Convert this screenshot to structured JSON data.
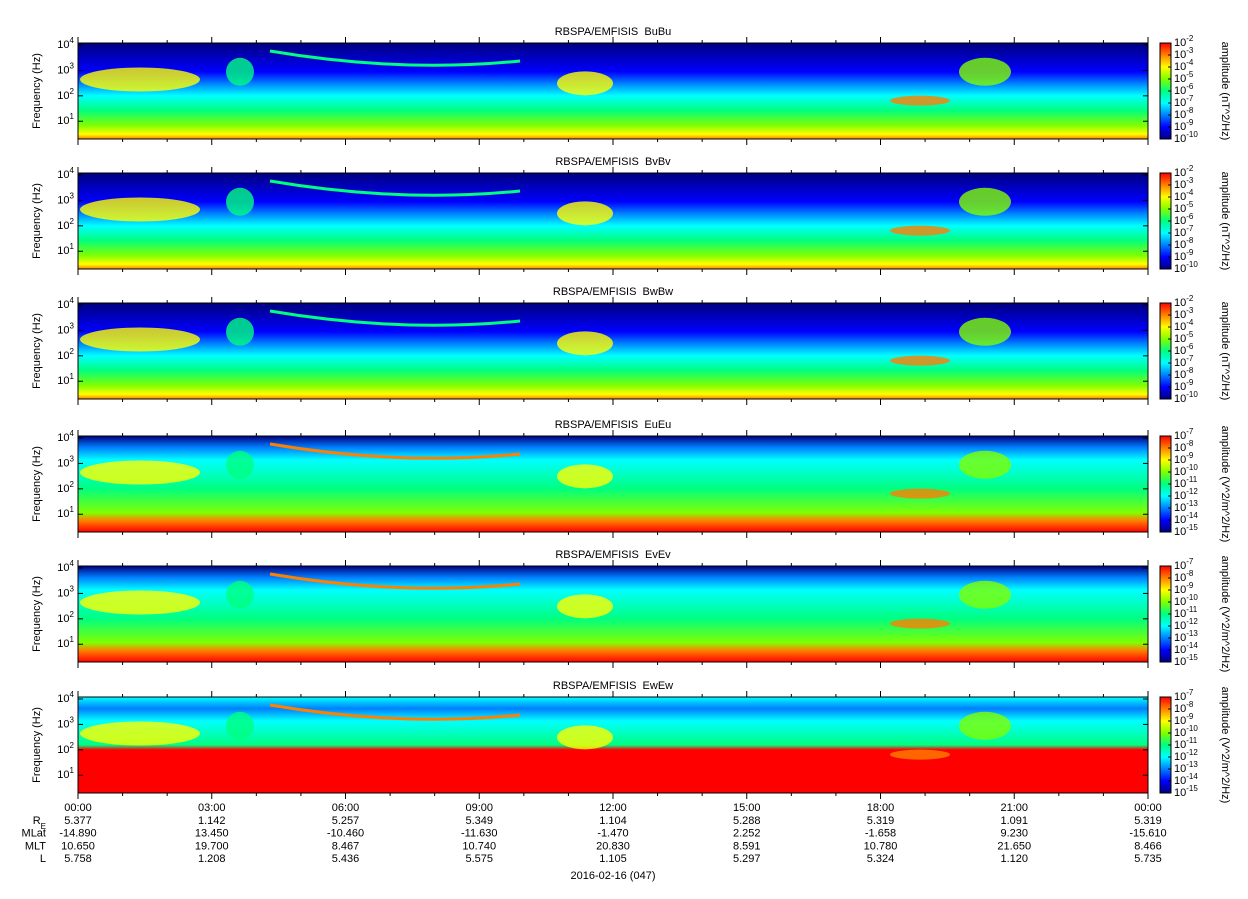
{
  "chart_data": [
    {
      "type": "spectrogram",
      "title": "RBSPA/EMFISIS  BuBu",
      "ylabel": "Frequency (Hz)",
      "log_y": true,
      "ylim": [
        2,
        12000
      ],
      "yticks": [
        {
          "value": 10,
          "label": "10",
          "exponent": "1"
        },
        {
          "value": 100,
          "label": "10",
          "exponent": "2"
        },
        {
          "value": 1000,
          "label": "10",
          "exponent": "3"
        },
        {
          "value": 10000,
          "label": "10",
          "exponent": "4"
        }
      ],
      "colorbar": {
        "label": "amplitude (nT^2/Hz)",
        "lim": [
          1e-10,
          0.01
        ],
        "ticks": [
          {
            "value": 0.01,
            "label": "10",
            "exponent": "-2"
          },
          {
            "value": 0.001,
            "label": "10",
            "exponent": "-3"
          },
          {
            "value": 0.0001,
            "label": "10",
            "exponent": "-4"
          },
          {
            "value": 1e-05,
            "label": "10",
            "exponent": "-5"
          },
          {
            "value": 1e-06,
            "label": "10",
            "exponent": "-6"
          },
          {
            "value": 1e-07,
            "label": "10",
            "exponent": "-7"
          },
          {
            "value": 1e-08,
            "label": "10",
            "exponent": "-8"
          },
          {
            "value": 1e-09,
            "label": "10",
            "exponent": "-9"
          },
          {
            "value": 1e-10,
            "label": "10",
            "exponent": "-10"
          }
        ]
      }
    },
    {
      "type": "spectrogram",
      "title": "RBSPA/EMFISIS  BvBv",
      "ylabel": "Frequency (Hz)",
      "log_y": true,
      "ylim": [
        2,
        12000
      ],
      "yticks": [
        {
          "value": 10,
          "label": "10",
          "exponent": "1"
        },
        {
          "value": 100,
          "label": "10",
          "exponent": "2"
        },
        {
          "value": 1000,
          "label": "10",
          "exponent": "3"
        },
        {
          "value": 10000,
          "label": "10",
          "exponent": "4"
        }
      ],
      "colorbar": {
        "label": "amplitude (nT^2/Hz)",
        "lim": [
          1e-10,
          0.01
        ],
        "ticks": [
          {
            "value": 0.01,
            "label": "10",
            "exponent": "-2"
          },
          {
            "value": 0.001,
            "label": "10",
            "exponent": "-3"
          },
          {
            "value": 0.0001,
            "label": "10",
            "exponent": "-4"
          },
          {
            "value": 1e-05,
            "label": "10",
            "exponent": "-5"
          },
          {
            "value": 1e-06,
            "label": "10",
            "exponent": "-6"
          },
          {
            "value": 1e-07,
            "label": "10",
            "exponent": "-7"
          },
          {
            "value": 1e-08,
            "label": "10",
            "exponent": "-8"
          },
          {
            "value": 1e-09,
            "label": "10",
            "exponent": "-9"
          },
          {
            "value": 1e-10,
            "label": "10",
            "exponent": "-10"
          }
        ]
      }
    },
    {
      "type": "spectrogram",
      "title": "RBSPA/EMFISIS  BwBw",
      "ylabel": "Frequency (Hz)",
      "log_y": true,
      "ylim": [
        2,
        12000
      ],
      "yticks": [
        {
          "value": 10,
          "label": "10",
          "exponent": "1"
        },
        {
          "value": 100,
          "label": "10",
          "exponent": "2"
        },
        {
          "value": 1000,
          "label": "10",
          "exponent": "3"
        },
        {
          "value": 10000,
          "label": "10",
          "exponent": "4"
        }
      ],
      "colorbar": {
        "label": "amplitude (nT^2/Hz)",
        "lim": [
          1e-10,
          0.01
        ],
        "ticks": [
          {
            "value": 0.01,
            "label": "10",
            "exponent": "-2"
          },
          {
            "value": 0.001,
            "label": "10",
            "exponent": "-3"
          },
          {
            "value": 0.0001,
            "label": "10",
            "exponent": "-4"
          },
          {
            "value": 1e-05,
            "label": "10",
            "exponent": "-5"
          },
          {
            "value": 1e-06,
            "label": "10",
            "exponent": "-6"
          },
          {
            "value": 1e-07,
            "label": "10",
            "exponent": "-7"
          },
          {
            "value": 1e-08,
            "label": "10",
            "exponent": "-8"
          },
          {
            "value": 1e-09,
            "label": "10",
            "exponent": "-9"
          },
          {
            "value": 1e-10,
            "label": "10",
            "exponent": "-10"
          }
        ]
      }
    },
    {
      "type": "spectrogram",
      "title": "RBSPA/EMFISIS  EuEu",
      "ylabel": "Frequency (Hz)",
      "log_y": true,
      "ylim": [
        2,
        12000
      ],
      "yticks": [
        {
          "value": 10,
          "label": "10",
          "exponent": "1"
        },
        {
          "value": 100,
          "label": "10",
          "exponent": "2"
        },
        {
          "value": 1000,
          "label": "10",
          "exponent": "3"
        },
        {
          "value": 10000,
          "label": "10",
          "exponent": "4"
        }
      ],
      "colorbar": {
        "label": "amplitude (V^2/m^2/Hz)",
        "lim": [
          1e-15,
          1e-07
        ],
        "ticks": [
          {
            "value": 1e-07,
            "label": "10",
            "exponent": "-7"
          },
          {
            "value": 1e-08,
            "label": "10",
            "exponent": "-8"
          },
          {
            "value": 1e-09,
            "label": "10",
            "exponent": "-9"
          },
          {
            "value": 1e-10,
            "label": "10",
            "exponent": "-10"
          },
          {
            "value": 1e-11,
            "label": "10",
            "exponent": "-11"
          },
          {
            "value": 1e-12,
            "label": "10",
            "exponent": "-12"
          },
          {
            "value": 1e-13,
            "label": "10",
            "exponent": "-13"
          },
          {
            "value": 1e-14,
            "label": "10",
            "exponent": "-14"
          },
          {
            "value": 1e-15,
            "label": "10",
            "exponent": "-15"
          }
        ]
      }
    },
    {
      "type": "spectrogram",
      "title": "RBSPA/EMFISIS  EvEv",
      "ylabel": "Frequency (Hz)",
      "log_y": true,
      "ylim": [
        2,
        12000
      ],
      "yticks": [
        {
          "value": 10,
          "label": "10",
          "exponent": "1"
        },
        {
          "value": 100,
          "label": "10",
          "exponent": "2"
        },
        {
          "value": 1000,
          "label": "10",
          "exponent": "3"
        },
        {
          "value": 10000,
          "label": "10",
          "exponent": "4"
        }
      ],
      "colorbar": {
        "label": "amplitude (V^2/m^2/Hz)",
        "lim": [
          1e-15,
          1e-07
        ],
        "ticks": [
          {
            "value": 1e-07,
            "label": "10",
            "exponent": "-7"
          },
          {
            "value": 1e-08,
            "label": "10",
            "exponent": "-8"
          },
          {
            "value": 1e-09,
            "label": "10",
            "exponent": "-9"
          },
          {
            "value": 1e-10,
            "label": "10",
            "exponent": "-10"
          },
          {
            "value": 1e-11,
            "label": "10",
            "exponent": "-11"
          },
          {
            "value": 1e-12,
            "label": "10",
            "exponent": "-12"
          },
          {
            "value": 1e-13,
            "label": "10",
            "exponent": "-13"
          },
          {
            "value": 1e-14,
            "label": "10",
            "exponent": "-14"
          },
          {
            "value": 1e-15,
            "label": "10",
            "exponent": "-15"
          }
        ]
      }
    },
    {
      "type": "spectrogram",
      "title": "RBSPA/EMFISIS  EwEw",
      "ylabel": "Frequency (Hz)",
      "log_y": true,
      "ylim": [
        2,
        12000
      ],
      "yticks": [
        {
          "value": 10,
          "label": "10",
          "exponent": "1"
        },
        {
          "value": 100,
          "label": "10",
          "exponent": "2"
        },
        {
          "value": 1000,
          "label": "10",
          "exponent": "3"
        },
        {
          "value": 10000,
          "label": "10",
          "exponent": "4"
        }
      ],
      "colorbar": {
        "label": "amplitude (V^2/m^2/Hz)",
        "lim": [
          1e-15,
          1e-07
        ],
        "ticks": [
          {
            "value": 1e-07,
            "label": "10",
            "exponent": "-7"
          },
          {
            "value": 1e-08,
            "label": "10",
            "exponent": "-8"
          },
          {
            "value": 1e-09,
            "label": "10",
            "exponent": "-9"
          },
          {
            "value": 1e-10,
            "label": "10",
            "exponent": "-10"
          },
          {
            "value": 1e-11,
            "label": "10",
            "exponent": "-11"
          },
          {
            "value": 1e-12,
            "label": "10",
            "exponent": "-12"
          },
          {
            "value": 1e-13,
            "label": "10",
            "exponent": "-13"
          },
          {
            "value": 1e-14,
            "label": "10",
            "exponent": "-14"
          },
          {
            "value": 1e-15,
            "label": "10",
            "exponent": "-15"
          }
        ]
      }
    }
  ],
  "colormap": [
    "#00007f",
    "#0000ff",
    "#0080ff",
    "#00ffff",
    "#00ff80",
    "#80ff00",
    "#ffff00",
    "#ff8000",
    "#ff0000"
  ],
  "time_axis": {
    "ticks": [
      "00:00",
      "03:00",
      "06:00",
      "09:00",
      "12:00",
      "15:00",
      "18:00",
      "21:00",
      "00:00"
    ],
    "rows": [
      {
        "label": "R",
        "subscript": "E",
        "values": [
          "5.377",
          "1.142",
          "5.257",
          "5.349",
          "1.104",
          "5.288",
          "5.319",
          "1.091",
          "5.319"
        ]
      },
      {
        "label": "MLat",
        "values": [
          "-14.890",
          "13.450",
          "-10.460",
          "-11.630",
          "-1.470",
          "2.252",
          "-1.658",
          "9.230",
          "-15.610"
        ]
      },
      {
        "label": "MLT",
        "values": [
          "10.650",
          "19.700",
          "8.467",
          "10.740",
          "20.830",
          "8.591",
          "10.780",
          "21.650",
          "8.466"
        ]
      },
      {
        "label": "L",
        "values": [
          "5.758",
          "1.208",
          "5.436",
          "5.575",
          "1.105",
          "5.297",
          "5.324",
          "1.120",
          "5.735"
        ]
      }
    ],
    "date": "2016-02-16 (047)"
  }
}
